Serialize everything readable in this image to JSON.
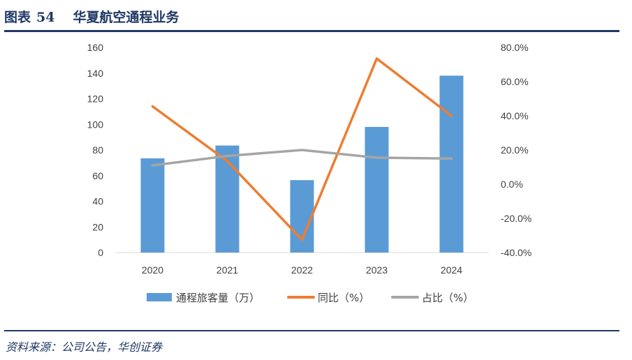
{
  "header": {
    "figure_label": "图表",
    "figure_number": "54",
    "title": "华夏航空通程业务"
  },
  "footer": {
    "source": "资料来源：公司公告，华创证券"
  },
  "chart_data": {
    "type": "bar",
    "categories": [
      "2020",
      "2021",
      "2022",
      "2023",
      "2024"
    ],
    "series": [
      {
        "name": "通程旅客量（万）",
        "type": "bar",
        "axis": "left",
        "color": "#5b9bd5",
        "values": [
          73.5,
          83.5,
          56.5,
          98,
          138
        ]
      },
      {
        "name": "同比（%）",
        "type": "line",
        "axis": "right",
        "color": "#ed7d31",
        "values": [
          45.5,
          13.5,
          -32.5,
          73.5,
          40.0
        ]
      },
      {
        "name": "占比（%）",
        "type": "line",
        "axis": "right",
        "color": "#a5a5a5",
        "values": [
          11.0,
          16.5,
          20.0,
          15.5,
          15.0
        ]
      }
    ],
    "left_axis": {
      "min": 0,
      "max": 160,
      "ticks": [
        "0",
        "20",
        "40",
        "60",
        "80",
        "100",
        "120",
        "140",
        "160"
      ]
    },
    "right_axis": {
      "min": -40,
      "max": 80,
      "ticks": [
        "-40.0%",
        "-20.0%",
        "0.0%",
        "20.0%",
        "40.0%",
        "60.0%",
        "80.0%"
      ]
    },
    "legend_position": "bottom",
    "grid": false
  }
}
